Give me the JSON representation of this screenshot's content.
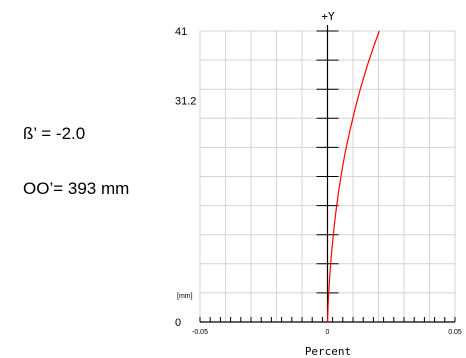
{
  "annotations": {
    "beta": "ß’ = -2.0",
    "oo": "OO’= 393 mm"
  },
  "chart_data": {
    "type": "line",
    "title": "",
    "xlabel": "Percent",
    "ylabel": "+Y",
    "y_unit": "[mm]",
    "xlim": [
      -0.05,
      0.05
    ],
    "ylim": [
      0,
      41
    ],
    "x_tick_labels": [
      "-0.05",
      "0",
      "0.05"
    ],
    "y_tick_labels": [
      "0",
      "31.2",
      "41"
    ],
    "grid": true,
    "series": [
      {
        "color": "#ff0000",
        "points": [
          [
            0.0,
            0.0
          ],
          [
            0.0003,
            3.0
          ],
          [
            0.0008,
            6.0
          ],
          [
            0.0014,
            9.0
          ],
          [
            0.0022,
            12.0
          ],
          [
            0.0031,
            15.0
          ],
          [
            0.0042,
            18.0
          ],
          [
            0.0055,
            21.0
          ],
          [
            0.007,
            24.0
          ],
          [
            0.0088,
            27.0
          ],
          [
            0.0108,
            30.0
          ],
          [
            0.013,
            33.0
          ],
          [
            0.0155,
            36.0
          ],
          [
            0.0183,
            39.0
          ],
          [
            0.0203,
            41.0
          ]
        ]
      }
    ]
  }
}
